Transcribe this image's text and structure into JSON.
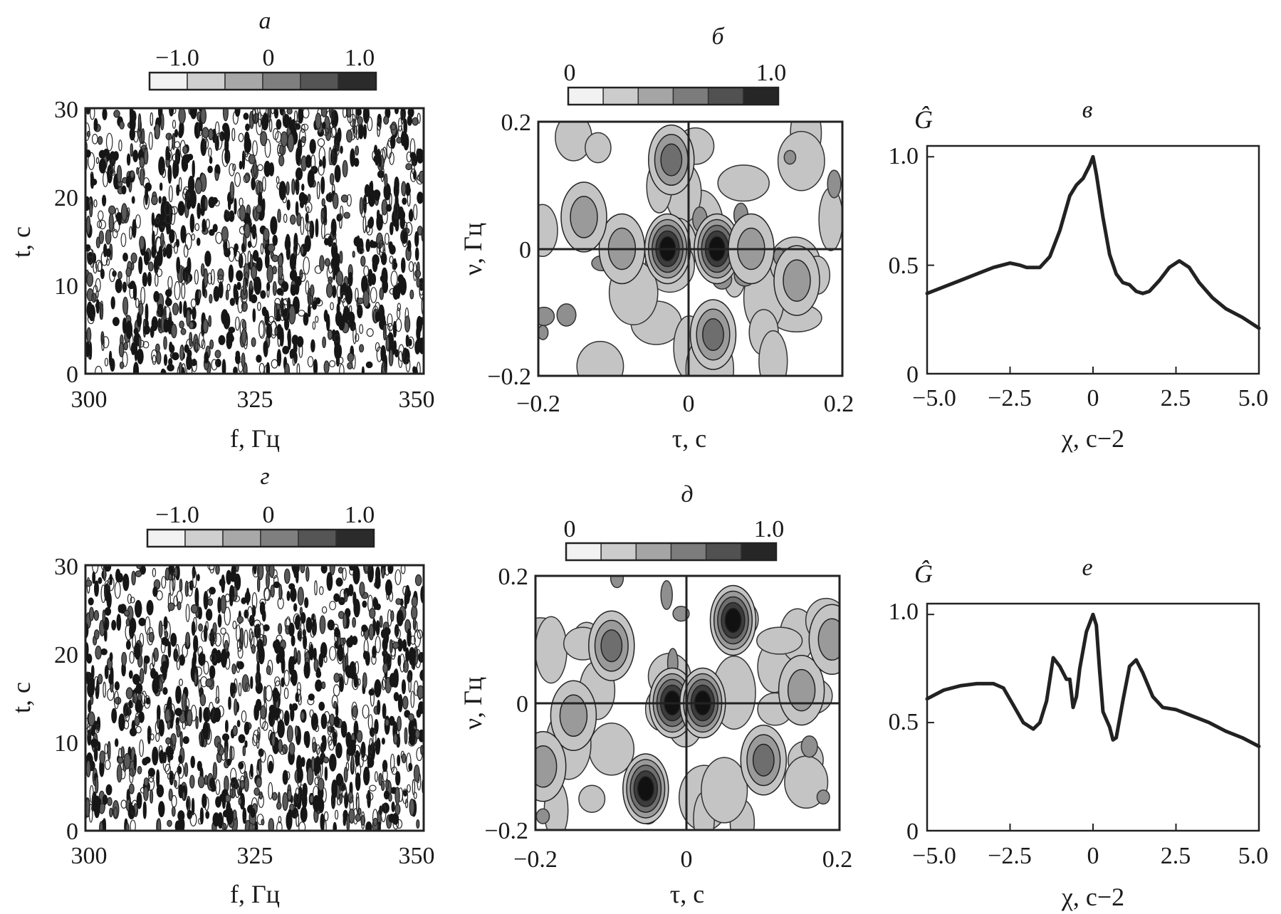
{
  "chart_data": [
    {
      "panel": "а",
      "type": "heatmap",
      "xlabel": "f, Гц",
      "ylabel": "t, с",
      "xlim": [
        300,
        350
      ],
      "ylim": [
        0,
        30
      ],
      "x_ticks": [
        "300",
        "325",
        "350"
      ],
      "y_ticks": [
        "0",
        "10",
        "20",
        "30"
      ],
      "colorbar": {
        "min": -1.0,
        "max": 1.0,
        "ticks": [
          "−1.0",
          "0",
          "1.0"
        ]
      },
      "pattern": "dense noise-like oscillating field, vertically elongated cells"
    },
    {
      "panel": "б",
      "type": "heatmap",
      "xlabel": "τ, с",
      "ylabel": "ν, Гц",
      "xlim": [
        -0.2,
        0.2
      ],
      "ylim": [
        -0.2,
        0.2
      ],
      "x_ticks": [
        "−0.2",
        "0",
        "0.2"
      ],
      "y_ticks": [
        "−0.2",
        "0",
        "0.2"
      ],
      "colorbar": {
        "min": 0,
        "max": 1.0,
        "ticks": [
          "0",
          "1.0"
        ]
      },
      "peaks": [
        {
          "x": -0.03,
          "y": 0.0,
          "value": 1.0
        },
        {
          "x": 0.035,
          "y": 0.0,
          "value": 1.0
        },
        {
          "x": -0.025,
          "y": 0.14,
          "value": 0.6
        },
        {
          "x": 0.03,
          "y": -0.135,
          "value": 0.6
        },
        {
          "x": -0.09,
          "y": 0.0,
          "value": 0.45
        },
        {
          "x": 0.08,
          "y": 0.0,
          "value": 0.45
        },
        {
          "x": -0.14,
          "y": 0.05,
          "value": 0.45
        },
        {
          "x": 0.14,
          "y": -0.05,
          "value": 0.45
        }
      ]
    },
    {
      "panel": "в",
      "type": "line",
      "xlabel": "χ, с−2",
      "ylabel": "Ĝ",
      "xlim": [
        -5.0,
        5.0
      ],
      "ylim": [
        0,
        1.05
      ],
      "x_ticks": [
        "−5.0",
        "−2.5",
        "0",
        "2.5",
        "5.0"
      ],
      "y_ticks": [
        "0",
        "0.5",
        "1.0"
      ],
      "series": [
        {
          "x": [
            -5.0,
            -4.5,
            -4.0,
            -3.5,
            -3.0,
            -2.5,
            -2.2,
            -2.0,
            -1.6,
            -1.3,
            -1.0,
            -0.7,
            -0.5,
            -0.3,
            -0.1,
            0.0,
            0.1,
            0.3,
            0.5,
            0.7,
            0.9,
            1.1,
            1.3,
            1.5,
            1.7,
            2.0,
            2.3,
            2.6,
            2.9,
            3.2,
            3.6,
            4.0,
            4.5,
            5.0
          ],
          "y": [
            0.37,
            0.4,
            0.43,
            0.46,
            0.49,
            0.51,
            0.5,
            0.49,
            0.49,
            0.54,
            0.66,
            0.82,
            0.87,
            0.9,
            0.96,
            1.0,
            0.92,
            0.72,
            0.55,
            0.46,
            0.42,
            0.41,
            0.38,
            0.37,
            0.38,
            0.43,
            0.49,
            0.52,
            0.49,
            0.42,
            0.35,
            0.3,
            0.26,
            0.21
          ]
        }
      ]
    },
    {
      "panel": "г",
      "type": "heatmap",
      "xlabel": "f, Гц",
      "ylabel": "t, с",
      "xlim": [
        300,
        350
      ],
      "ylim": [
        0,
        30
      ],
      "x_ticks": [
        "300",
        "325",
        "350"
      ],
      "y_ticks": [
        "0",
        "10",
        "20",
        "30"
      ],
      "colorbar": {
        "min": -1.0,
        "max": 1.0,
        "ticks": [
          "−1.0",
          "0",
          "1.0"
        ]
      },
      "pattern": "dense noise-like oscillating field, vertically elongated cells"
    },
    {
      "panel": "д",
      "type": "heatmap",
      "xlabel": "τ, с",
      "ylabel": "ν, Гц",
      "xlim": [
        -0.2,
        0.2
      ],
      "ylim": [
        -0.2,
        0.2
      ],
      "x_ticks": [
        "−0.2",
        "0",
        "0.2"
      ],
      "y_ticks": [
        "−0.2",
        "0",
        "0.2"
      ],
      "colorbar": {
        "min": 0,
        "max": 1.0,
        "ticks": [
          "0",
          "1.0"
        ]
      },
      "peaks": [
        {
          "x": -0.02,
          "y": 0.0,
          "value": 0.9
        },
        {
          "x": 0.02,
          "y": 0.0,
          "value": 0.9
        },
        {
          "x": 0.06,
          "y": 0.13,
          "value": 1.0
        },
        {
          "x": -0.055,
          "y": -0.135,
          "value": 1.0
        },
        {
          "x": -0.1,
          "y": 0.09,
          "value": 0.5
        },
        {
          "x": 0.1,
          "y": -0.09,
          "value": 0.5
        },
        {
          "x": 0.15,
          "y": 0.02,
          "value": 0.45
        },
        {
          "x": -0.15,
          "y": -0.02,
          "value": 0.45
        },
        {
          "x": 0.19,
          "y": 0.1,
          "value": 0.45
        },
        {
          "x": -0.19,
          "y": -0.1,
          "value": 0.45
        }
      ]
    },
    {
      "panel": "е",
      "type": "line",
      "xlabel": "χ, с−2",
      "ylabel": "Ĝ",
      "xlim": [
        -5.0,
        5.0
      ],
      "ylim": [
        0,
        1.05
      ],
      "x_ticks": [
        "−5.0",
        "−2.5",
        "0",
        "2.5",
        "5.0"
      ],
      "y_ticks": [
        "0",
        "0.5",
        "1.0"
      ],
      "series": [
        {
          "x": [
            -5.0,
            -4.5,
            -4.0,
            -3.5,
            -3.0,
            -2.7,
            -2.4,
            -2.1,
            -1.8,
            -1.6,
            -1.4,
            -1.2,
            -1.0,
            -0.8,
            -0.7,
            -0.6,
            -0.5,
            -0.4,
            -0.2,
            0.0,
            0.1,
            0.2,
            0.3,
            0.5,
            0.6,
            0.7,
            0.9,
            1.1,
            1.3,
            1.5,
            1.8,
            2.1,
            2.5,
            3.0,
            3.5,
            4.0,
            4.5,
            5.0
          ],
          "y": [
            0.61,
            0.65,
            0.67,
            0.68,
            0.68,
            0.66,
            0.58,
            0.5,
            0.47,
            0.5,
            0.6,
            0.8,
            0.76,
            0.7,
            0.7,
            0.57,
            0.62,
            0.75,
            0.92,
            1.0,
            0.95,
            0.74,
            0.55,
            0.48,
            0.42,
            0.43,
            0.6,
            0.76,
            0.79,
            0.73,
            0.62,
            0.57,
            0.56,
            0.53,
            0.5,
            0.46,
            0.43,
            0.39
          ]
        }
      ]
    }
  ]
}
